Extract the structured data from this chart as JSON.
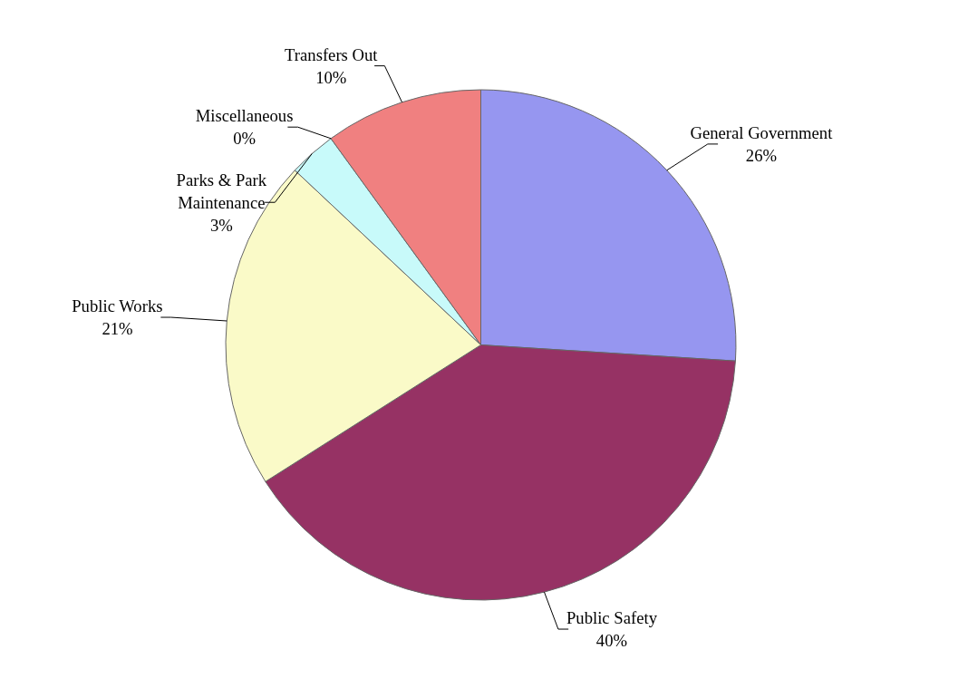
{
  "chart_data": {
    "type": "pie",
    "categories": [
      "General Government",
      "Public Safety",
      "Public Works",
      "Parks & Park Maintenance",
      "Miscellaneous",
      "Transfers Out"
    ],
    "values": [
      26,
      40,
      21,
      3,
      0,
      10
    ],
    "value_labels": [
      "26%",
      "40%",
      "21%",
      "3%",
      "0%",
      "10%"
    ],
    "colors": [
      "#9696f0",
      "#963264",
      "#fafac8",
      "#c8fafa",
      "#600020",
      "#f08080"
    ]
  }
}
